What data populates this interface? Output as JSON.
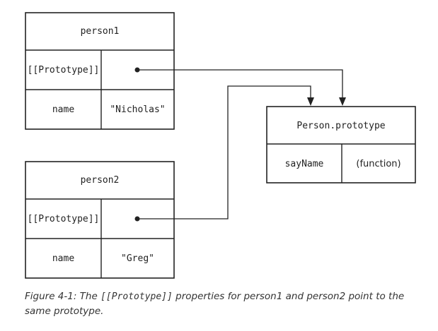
{
  "person1": {
    "title": "person1",
    "rows": [
      {
        "key": "[[Prototype]]",
        "value": ""
      },
      {
        "key": "name",
        "value": "\"Nicholas\""
      }
    ]
  },
  "person2": {
    "title": "person2",
    "rows": [
      {
        "key": "[[Prototype]]",
        "value": ""
      },
      {
        "key": "name",
        "value": "\"Greg\""
      }
    ]
  },
  "prototype": {
    "title": "Person.prototype",
    "rows": [
      {
        "key": "sayName",
        "value": "(function)"
      }
    ]
  },
  "caption": {
    "lead": "Figure 4-1: The ",
    "code": "[[Prototype]]",
    "middle": " properties for ",
    "p1": "person1",
    "and": " and ",
    "p2": "person2",
    "tail": " point to the same prototype."
  }
}
